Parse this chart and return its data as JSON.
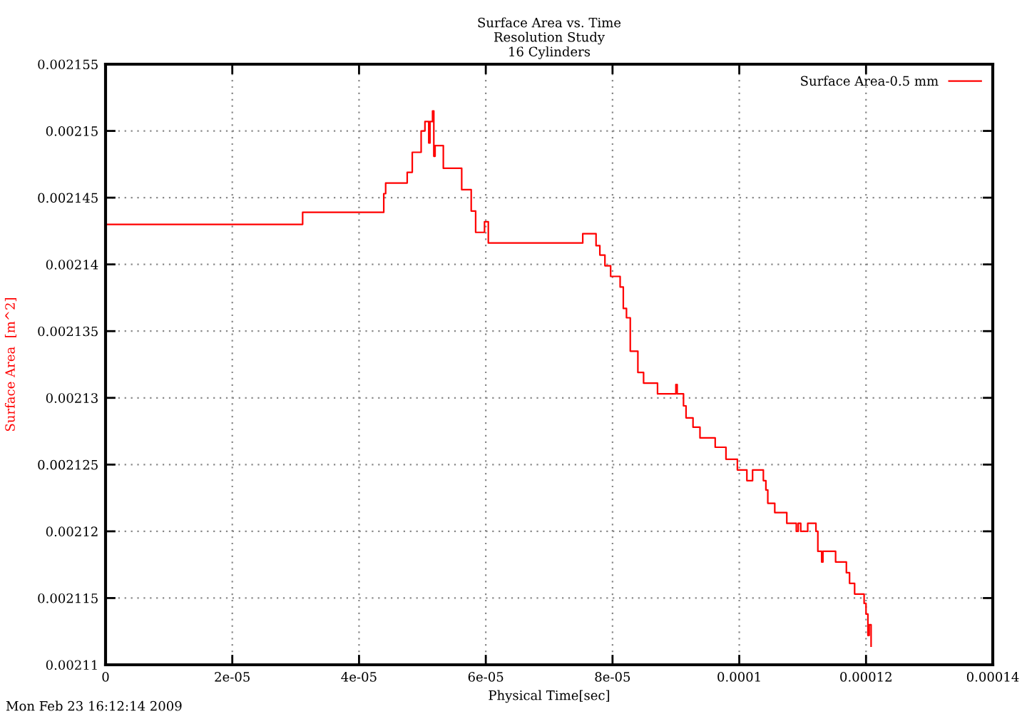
{
  "chart_data": {
    "type": "step",
    "title": "Surface Area vs. Time\nResolution Study\n16 Cylinders",
    "xlabel": "Physical Time[sec]",
    "ylabel": "Surface Area  [m^2]",
    "annotations": [
      "Mon Feb 23 16:12:14 2009"
    ],
    "xlim": [
      0,
      0.00014
    ],
    "xticks": [
      0,
      2e-05,
      4e-05,
      6e-05,
      8e-05,
      0.0001,
      0.00012,
      0.00014
    ],
    "ylim": [
      0.00211,
      0.002155
    ],
    "yticks": [
      0.00211,
      0.002115,
      0.00212,
      0.002125,
      0.00213,
      0.002135,
      0.00214,
      0.002145,
      0.00215,
      0.002155
    ],
    "grid": true,
    "legend": "top right",
    "line_style": "solid",
    "series": [
      {
        "name": "Surface Area-0.5 mm",
        "color": "#ff0000",
        "x": [
          0,
          3.11e-05,
          4.39e-05,
          4.42e-05,
          4.5e-05,
          4.76e-05,
          4.84e-05,
          4.98e-05,
          5.04e-05,
          5.1e-05,
          5.12e-05,
          5.13e-05,
          5.16e-05,
          5.18e-05,
          5.2e-05,
          5.33e-05,
          5.62e-05,
          5.77e-05,
          5.84e-05,
          5.98e-05,
          6.04e-05,
          7.53e-05,
          7.74e-05,
          7.8e-05,
          7.88e-05,
          7.97e-05,
          8.12e-05,
          8.17e-05,
          8.22e-05,
          8.28e-05,
          8.4e-05,
          8.49e-05,
          8.71e-05,
          9e-05,
          9.02e-05,
          9.12e-05,
          9.16e-05,
          9.27e-05,
          9.38e-05,
          9.62e-05,
          9.79e-05,
          9.97e-05,
          0.0001012,
          0.0001021,
          0.0001038,
          0.0001042,
          0.0001045,
          0.0001056,
          0.0001075,
          0.000109,
          0.0001093,
          0.0001097,
          0.0001108,
          0.0001121,
          0.0001124,
          0.000113,
          0.0001132,
          0.0001152,
          0.0001169,
          0.0001174,
          0.0001182,
          0.0001197,
          0.00012,
          0.0001203,
          0.0001205,
          0.0001208
        ],
        "values": [
          0.002143,
          0.0021439,
          0.0021453,
          0.0021461,
          0.0021461,
          0.0021469,
          0.0021484,
          0.00215,
          0.0021507,
          0.0021491,
          0.0021507,
          0.0021507,
          0.0021515,
          0.0021481,
          0.0021489,
          0.0021472,
          0.0021456,
          0.002144,
          0.0021424,
          0.0021432,
          0.0021416,
          0.0021423,
          0.0021414,
          0.0021407,
          0.0021399,
          0.0021391,
          0.0021383,
          0.0021367,
          0.002136,
          0.0021335,
          0.0021319,
          0.0021311,
          0.0021303,
          0.002131,
          0.0021303,
          0.0021294,
          0.0021285,
          0.0021278,
          0.002127,
          0.0021263,
          0.0021254,
          0.0021246,
          0.0021238,
          0.0021246,
          0.0021238,
          0.0021231,
          0.0021221,
          0.0021214,
          0.0021206,
          0.00212,
          0.0021206,
          0.00212,
          0.0021206,
          0.00212,
          0.0021185,
          0.0021177,
          0.0021185,
          0.0021177,
          0.0021169,
          0.0021161,
          0.0021153,
          0.0021146,
          0.0021138,
          0.0021122,
          0.002113,
          0.0021114
        ]
      }
    ]
  }
}
